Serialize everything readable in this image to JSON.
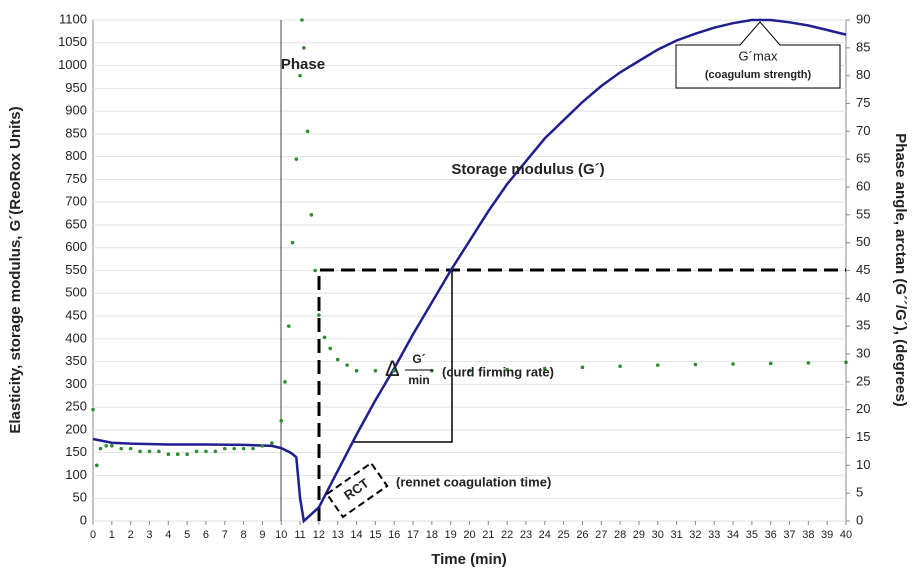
{
  "chart_data": {
    "type": "line",
    "xlabel": "Time (min)",
    "ylabel": "Elasticity, storage modulus, G´(ReoRox Units)",
    "y2label": "Phase angle, arctan (G´´/G´), (degrees)",
    "xlim": [
      0,
      40
    ],
    "xticks": [
      0,
      1,
      2,
      3,
      4,
      5,
      6,
      7,
      8,
      9,
      10,
      11,
      12,
      13,
      14,
      15,
      16,
      17,
      18,
      19,
      20,
      21,
      22,
      23,
      24,
      25,
      26,
      27,
      28,
      29,
      30,
      31,
      32,
      33,
      34,
      35,
      36,
      37,
      38,
      39,
      40
    ],
    "ylim": [
      0,
      1100
    ],
    "yticks": [
      0,
      50,
      100,
      150,
      200,
      250,
      300,
      350,
      400,
      450,
      500,
      550,
      600,
      650,
      700,
      750,
      800,
      850,
      900,
      950,
      1000,
      1050,
      1100
    ],
    "y2lim": [
      0,
      90
    ],
    "y2ticks": [
      0,
      5,
      10,
      15,
      20,
      25,
      30,
      35,
      40,
      45,
      50,
      55,
      60,
      65,
      70,
      75,
      80,
      85,
      90
    ],
    "grid": true,
    "series": [
      {
        "name": "Storage modulus (G´)",
        "color": "#1f1f8f",
        "x": [
          0,
          1,
          2,
          4,
          6,
          8,
          9.5,
          10,
          10.5,
          10.8,
          11,
          11.2,
          12,
          13,
          14,
          15,
          16,
          17,
          18,
          19,
          20,
          21,
          22,
          23,
          24,
          25,
          26,
          27,
          28,
          29,
          30,
          31,
          32,
          33,
          34,
          35,
          36,
          37,
          38,
          39,
          40
        ],
        "values": [
          180,
          172,
          170,
          168,
          168,
          167,
          165,
          160,
          150,
          140,
          50,
          0,
          30,
          110,
          190,
          265,
          335,
          410,
          480,
          550,
          615,
          680,
          740,
          790,
          840,
          880,
          920,
          955,
          985,
          1010,
          1035,
          1055,
          1070,
          1083,
          1093,
          1100,
          1100,
          1095,
          1088,
          1078,
          1068
        ]
      },
      {
        "name": "Phase",
        "color": "#2e8b2e",
        "axis": "y2",
        "x": [
          0,
          0.2,
          0.4,
          0.7,
          1,
          1.5,
          2,
          2.5,
          3,
          3.5,
          4,
          4.5,
          5,
          5.5,
          6,
          6.5,
          7,
          7.5,
          8,
          8.5,
          9,
          9.5,
          10,
          10.2,
          10.4,
          10.6,
          10.8,
          11,
          11.1,
          11.2,
          11.4,
          11.6,
          11.8,
          12,
          12.3,
          12.6,
          13,
          13.5,
          14,
          15,
          16,
          18,
          20,
          22,
          24,
          26,
          28,
          30,
          32,
          34,
          36,
          38,
          40
        ],
        "values": [
          20,
          10,
          13,
          13.5,
          13.5,
          13,
          13,
          12.5,
          12.5,
          12.5,
          12,
          12,
          12,
          12.5,
          12.5,
          12.5,
          13,
          13,
          13,
          13,
          13.5,
          14,
          18,
          25,
          35,
          50,
          65,
          80,
          90,
          85,
          70,
          55,
          45,
          37,
          33,
          31,
          29,
          28,
          27,
          27,
          27,
          27,
          27,
          27.2,
          27.4,
          27.6,
          27.8,
          28,
          28.1,
          28.2,
          28.3,
          28.4,
          28.5
        ]
      }
    ],
    "annotations": {
      "phase": "Phase",
      "storage": "Storage modulus (G´)",
      "gmax": "G´max",
      "gmax_note": "(coagulum strength)",
      "delta": "Δ",
      "frac_num": "G´",
      "frac_den": "min",
      "rate": "(curd firming rate)",
      "rct": "RCT",
      "rct_note": "(rennet coagulation time)"
    }
  }
}
